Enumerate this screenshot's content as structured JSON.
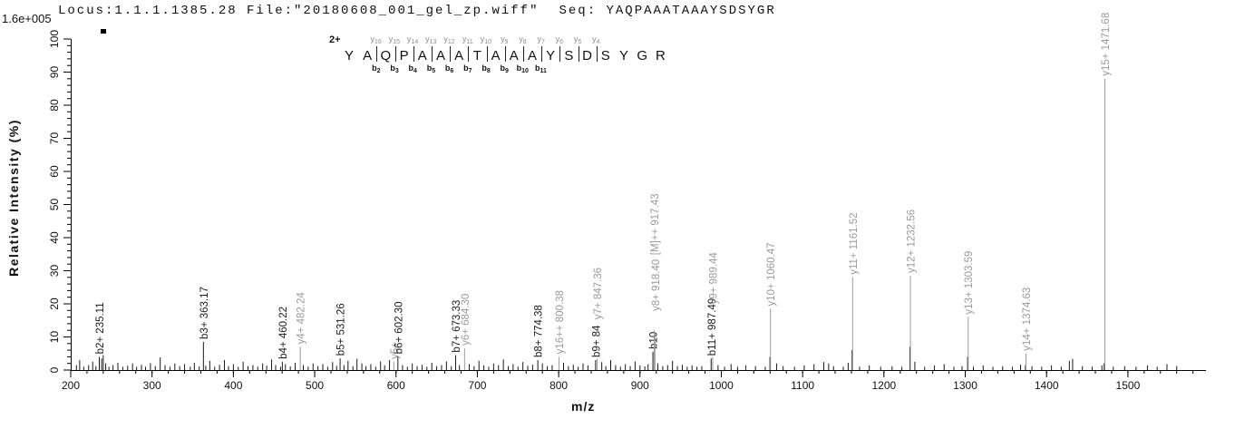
{
  "header": {
    "locus_file": "Locus:1.1.1.1385.28 File:\"20180608_001_gel_zp.wiff\"",
    "seq": "Seq: YAQPAAATAAAYSDSYGR"
  },
  "colors": {
    "b_ion": "#1a1a1a",
    "y_ion": "#9a9a9a",
    "axis": "#000000",
    "background": "#ffffff"
  },
  "peptide": {
    "charge": "2+",
    "residues": [
      "Y",
      "A",
      "Q",
      "P",
      "A",
      "A",
      "A",
      "T",
      "A",
      "A",
      "A",
      "Y",
      "S",
      "D",
      "S",
      "Y",
      "G",
      "R"
    ],
    "cleavages": [
      {
        "after": 2,
        "y": "y16",
        "b": "b2"
      },
      {
        "after": 3,
        "y": "y15",
        "b": "b3"
      },
      {
        "after": 4,
        "y": "y14",
        "b": "b4"
      },
      {
        "after": 5,
        "y": "y13",
        "b": "b5"
      },
      {
        "after": 6,
        "y": "y12",
        "b": "b6"
      },
      {
        "after": 7,
        "y": "y11",
        "b": "b7"
      },
      {
        "after": 8,
        "y": "y10",
        "b": "b8"
      },
      {
        "after": 9,
        "y": "y9",
        "b": "b9"
      },
      {
        "after": 10,
        "y": "y8",
        "b": "b10"
      },
      {
        "after": 11,
        "y": "y7",
        "b": "b11"
      },
      {
        "after": 12,
        "y": "y6",
        "b": null
      },
      {
        "after": 13,
        "y": "y5",
        "b": null
      },
      {
        "after": 14,
        "y": "y4",
        "b": null
      }
    ]
  },
  "chart_data": {
    "type": "bar",
    "subtype": "mass-spectrum",
    "title": "",
    "xlabel": "m/z",
    "ylabel": "Relative Intensity (%)",
    "max_intensity": "1.6e+005",
    "xlim": [
      200,
      1596
    ],
    "ylim": [
      0,
      100
    ],
    "grid": false,
    "x_major_ticks": [
      200,
      300,
      400,
      500,
      600,
      700,
      800,
      900,
      1000,
      1100,
      1200,
      1300,
      1400,
      1500
    ],
    "x_minor_step": 20,
    "x_minor_end": 1580,
    "y_major_ticks": [
      0,
      10,
      20,
      30,
      40,
      50,
      60,
      70,
      80,
      90,
      100
    ],
    "y_minor_step": 2,
    "annotated_peaks": [
      {
        "mz": 235.11,
        "intensity": 4,
        "label": "b2+ 235.11",
        "ion": "b",
        "label_dy": 0
      },
      {
        "mz": 363.17,
        "intensity": 8.5,
        "label": "b3+ 363.17",
        "ion": "b",
        "label_dy": 0
      },
      {
        "mz": 460.22,
        "intensity": 2.5,
        "label": "b4+ 460.22",
        "ion": "b",
        "label_dy": 0
      },
      {
        "mz": 482.24,
        "intensity": 7,
        "label": "y4+ 482.24",
        "ion": "y",
        "label_dy": 0
      },
      {
        "mz": 531.26,
        "intensity": 3.5,
        "label": "b5+ 531.26",
        "ion": "b",
        "label_dy": 0
      },
      {
        "mz": 597.27,
        "intensity": 2.5,
        "label": "y5+",
        "ion": "y",
        "label_dy": 0
      },
      {
        "mz": 602.3,
        "intensity": 4,
        "label": "b6+ 602.30",
        "ion": "b",
        "label_dy": 0
      },
      {
        "mz": 673.33,
        "intensity": 4.5,
        "label": "b7+ 673.33",
        "ion": "b",
        "label_dy": 0
      },
      {
        "mz": 684.3,
        "intensity": 6.6,
        "label": "y6+ 684.30",
        "ion": "y",
        "label_dy": 0
      },
      {
        "mz": 774.38,
        "intensity": 3,
        "label": "b8+ 774.38",
        "ion": "b",
        "label_dy": 0
      },
      {
        "mz": 800.38,
        "intensity": 4,
        "label": "y16++ 800.38",
        "ion": "y",
        "label_dy": 0
      },
      {
        "mz": 845.42,
        "intensity": 3,
        "label": "b9+ 84",
        "ion": "b",
        "label_dy": 0
      },
      {
        "mz": 847.36,
        "intensity": 3.5,
        "label": "y7+ 847.36",
        "ion": "y",
        "label_dy": 40
      },
      {
        "mz": 915.9,
        "intensity": 5.5,
        "label": "b10",
        "ion": "b",
        "label_dy": 0
      },
      {
        "mz": 918.4,
        "intensity": 11.5,
        "label": "y8+ 918.40",
        "ion": "y",
        "label_dy": 20
      },
      {
        "mz": 917.43,
        "intensity": 12,
        "label": "[M]++ 917.43",
        "ion": "y",
        "label_dy": 80
      },
      {
        "mz": 987.49,
        "intensity": 3.5,
        "label": "b11+ 987.49",
        "ion": "b",
        "label_dy": 0
      },
      {
        "mz": 989.44,
        "intensity": 4,
        "label": "y9+ 989.44",
        "ion": "y",
        "label_dy": 55
      },
      {
        "mz": 1060.47,
        "intensity": 18.5,
        "label": "y10+ 1060.47",
        "ion": "y",
        "label_dy": 0
      },
      {
        "mz": 1161.52,
        "intensity": 28,
        "label": "y11+ 1161.52",
        "ion": "y",
        "label_dy": 0
      },
      {
        "mz": 1232.56,
        "intensity": 28.5,
        "label": "y12+ 1232.56",
        "ion": "y",
        "label_dy": 0
      },
      {
        "mz": 1303.59,
        "intensity": 16,
        "label": "y13+ 1303.59",
        "ion": "y",
        "label_dy": 0
      },
      {
        "mz": 1374.63,
        "intensity": 5,
        "label": "y14+ 1374.63",
        "ion": "y",
        "label_dy": 0
      },
      {
        "mz": 1471.68,
        "intensity": 88,
        "label": "y15+ 1471.68",
        "ion": "y",
        "label_dy": 0
      }
    ],
    "noise_peaks": [
      [
        207,
        1.5
      ],
      [
        211,
        3
      ],
      [
        216,
        1
      ],
      [
        222,
        1.5
      ],
      [
        227,
        2.5
      ],
      [
        231,
        1.2
      ],
      [
        238,
        3.5
      ],
      [
        240,
        4.5
      ],
      [
        243,
        2
      ],
      [
        247,
        1
      ],
      [
        252,
        1.5
      ],
      [
        258,
        2.2
      ],
      [
        264,
        1
      ],
      [
        270,
        1.3
      ],
      [
        276,
        2
      ],
      [
        281,
        1
      ],
      [
        287,
        1.6
      ],
      [
        292,
        1
      ],
      [
        298,
        2.1
      ],
      [
        304,
        1.2
      ],
      [
        310,
        3.8
      ],
      [
        316,
        1.5
      ],
      [
        322,
        1
      ],
      [
        328,
        2
      ],
      [
        334,
        1.2
      ],
      [
        340,
        1.8
      ],
      [
        347,
        1
      ],
      [
        352,
        2.2
      ],
      [
        358,
        1.1
      ],
      [
        366,
        1.3
      ],
      [
        371,
        2.8
      ],
      [
        377,
        1
      ],
      [
        383,
        1.6
      ],
      [
        389,
        3
      ],
      [
        394,
        1.2
      ],
      [
        400,
        1.8
      ],
      [
        406,
        1
      ],
      [
        412,
        2.5
      ],
      [
        418,
        1.2
      ],
      [
        424,
        1.5
      ],
      [
        430,
        1
      ],
      [
        436,
        2
      ],
      [
        441,
        1.3
      ],
      [
        447,
        3.2
      ],
      [
        452,
        1.5
      ],
      [
        458,
        1
      ],
      [
        464,
        1.8
      ],
      [
        470,
        1.1
      ],
      [
        476,
        2.2
      ],
      [
        486,
        1.5
      ],
      [
        492,
        1
      ],
      [
        498,
        2
      ],
      [
        504,
        1.2
      ],
      [
        510,
        1.8
      ],
      [
        516,
        1
      ],
      [
        522,
        2.4
      ],
      [
        527,
        1.3
      ],
      [
        536,
        1.5
      ],
      [
        541,
        2.8
      ],
      [
        547,
        1.2
      ],
      [
        552,
        3.4
      ],
      [
        558,
        2
      ],
      [
        563,
        1.2
      ],
      [
        569,
        1.8
      ],
      [
        575,
        1
      ],
      [
        581,
        2.6
      ],
      [
        586,
        1.4
      ],
      [
        592,
        3
      ],
      [
        608,
        1.5
      ],
      [
        614,
        1
      ],
      [
        620,
        2
      ],
      [
        626,
        1.2
      ],
      [
        632,
        1.6
      ],
      [
        638,
        1
      ],
      [
        644,
        2.2
      ],
      [
        650,
        1.2
      ],
      [
        656,
        1.5
      ],
      [
        662,
        2.6
      ],
      [
        668,
        1.2
      ],
      [
        678,
        1.5
      ],
      [
        690,
        1.8
      ],
      [
        696,
        1.2
      ],
      [
        702,
        2.8
      ],
      [
        708,
        1.4
      ],
      [
        714,
        1
      ],
      [
        720,
        2
      ],
      [
        726,
        1.5
      ],
      [
        732,
        3.2
      ],
      [
        738,
        1.2
      ],
      [
        744,
        1.8
      ],
      [
        750,
        1
      ],
      [
        756,
        2.4
      ],
      [
        762,
        1.3
      ],
      [
        768,
        1.6
      ],
      [
        780,
        2
      ],
      [
        786,
        1.2
      ],
      [
        792,
        1.5
      ],
      [
        806,
        2.2
      ],
      [
        812,
        1.2
      ],
      [
        818,
        1.6
      ],
      [
        824,
        1
      ],
      [
        830,
        2
      ],
      [
        836,
        1.4
      ],
      [
        853,
        2.4
      ],
      [
        858,
        1.2
      ],
      [
        864,
        3
      ],
      [
        870,
        1.5
      ],
      [
        876,
        1
      ],
      [
        882,
        1.8
      ],
      [
        888,
        1.2
      ],
      [
        894,
        2.6
      ],
      [
        900,
        1.4
      ],
      [
        906,
        1.1
      ],
      [
        910,
        1.8
      ],
      [
        922,
        2
      ],
      [
        928,
        1.2
      ],
      [
        934,
        1.5
      ],
      [
        940,
        2.8
      ],
      [
        946,
        1.2
      ],
      [
        952,
        1.6
      ],
      [
        958,
        1
      ],
      [
        964,
        1.4
      ],
      [
        970,
        1
      ],
      [
        976,
        1.2
      ],
      [
        996,
        1.5
      ],
      [
        1004,
        1
      ],
      [
        1012,
        1.8
      ],
      [
        1020,
        1
      ],
      [
        1030,
        1.4
      ],
      [
        1042,
        1.2
      ],
      [
        1054,
        1
      ],
      [
        1059.8,
        4
      ],
      [
        1068,
        2
      ],
      [
        1076,
        1.2
      ],
      [
        1090,
        1
      ],
      [
        1102,
        1.4
      ],
      [
        1114,
        1.8
      ],
      [
        1126,
        2.4
      ],
      [
        1132,
        2
      ],
      [
        1138,
        1.2
      ],
      [
        1150,
        1
      ],
      [
        1156,
        2.2
      ],
      [
        1160.8,
        6
      ],
      [
        1170,
        1
      ],
      [
        1182,
        1.4
      ],
      [
        1196,
        1
      ],
      [
        1210,
        1.2
      ],
      [
        1222,
        1
      ],
      [
        1231.9,
        7
      ],
      [
        1238,
        2.5
      ],
      [
        1250,
        1
      ],
      [
        1262,
        1.4
      ],
      [
        1274,
        1.8
      ],
      [
        1286,
        1
      ],
      [
        1296,
        1.2
      ],
      [
        1302.9,
        4
      ],
      [
        1310,
        1
      ],
      [
        1322,
        1.4
      ],
      [
        1334,
        1
      ],
      [
        1346,
        1.2
      ],
      [
        1358,
        1
      ],
      [
        1368,
        1.6
      ],
      [
        1374,
        1.5
      ],
      [
        1382,
        1.2
      ],
      [
        1394,
        1
      ],
      [
        1406,
        1.4
      ],
      [
        1418,
        1
      ],
      [
        1428,
        2.8
      ],
      [
        1432,
        3.4
      ],
      [
        1444,
        1.2
      ],
      [
        1456,
        1
      ],
      [
        1468,
        1.4
      ],
      [
        1470.8,
        2
      ],
      [
        1482,
        1
      ],
      [
        1496,
        1.2
      ],
      [
        1510,
        1
      ],
      [
        1524,
        1.4
      ],
      [
        1536,
        1
      ],
      [
        1548,
        1.8
      ],
      [
        1560,
        1.2
      ]
    ]
  }
}
